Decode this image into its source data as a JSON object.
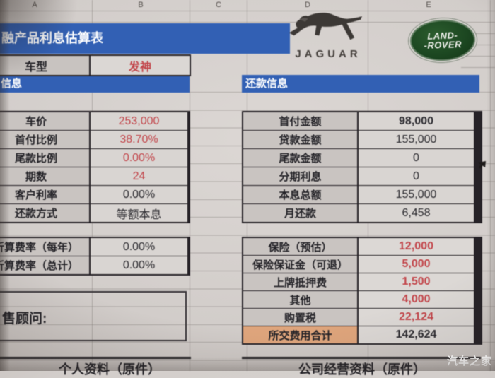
{
  "sheet": {
    "column_headers": [
      "A",
      "B",
      "C",
      "D",
      "E"
    ],
    "title_banner": "融产品利息估算表",
    "model_row": {
      "label": "车型",
      "value": "发神"
    },
    "left_section_header": "信息",
    "right_section_header": "还款信息",
    "vehicle_table": {
      "rows": [
        {
          "label": "车价",
          "value": "253,000",
          "red": true
        },
        {
          "label": "首付比例",
          "value": "38.70%",
          "red": true
        },
        {
          "label": "尾款比例",
          "value": "0.00%",
          "red": true
        },
        {
          "label": "期数",
          "value": "24",
          "red": true
        },
        {
          "label": "客户利率",
          "value": "0.00%",
          "red": false
        },
        {
          "label": "还款方式",
          "value": "等额本息",
          "red": false
        }
      ]
    },
    "rate_table": {
      "rows": [
        {
          "label": "折算费率（每年）",
          "value": "0.00%",
          "red": false
        },
        {
          "label": "折算费率（总计）",
          "value": "0.00%",
          "red": false
        }
      ]
    },
    "consultant_label": "售顾问:",
    "repayment_table": {
      "rows": [
        {
          "label": "首付金额",
          "value": "98,000",
          "bold": true
        },
        {
          "label": "贷款金额",
          "value": "155,000"
        },
        {
          "label": "尾款金额",
          "value": "0"
        },
        {
          "label": "分期利息",
          "value": "0"
        },
        {
          "label": "本息总额",
          "value": "155,000"
        },
        {
          "label": "月还款",
          "value": "6,458"
        }
      ]
    },
    "fees_table": {
      "rows": [
        {
          "label": "保险（预估）",
          "value": "12,000",
          "red": true
        },
        {
          "label": "保险保证金（可退）",
          "value": "5,000",
          "red": true
        },
        {
          "label": "上牌抵押费",
          "value": "1,500",
          "red": true
        },
        {
          "label": "其他",
          "value": "4,000",
          "red": true
        },
        {
          "label": "购置税",
          "value": "22,124",
          "red": true
        },
        {
          "label": "所交费用合计",
          "value": "142,624",
          "total": true
        }
      ]
    },
    "bottom_left_header": "个人资料（原件）",
    "bottom_right_header": "公司经营资料（原件）"
  },
  "logos": {
    "jaguar_text": "JAGUAR",
    "landrover_line1": "LAND-",
    "landrover_line2": "-ROVER"
  },
  "watermark": "汽车之家",
  "colors": {
    "banner_blue": "#3260b4",
    "value_red": "#c2454a",
    "total_orange": "#dfa57c",
    "landrover_green": "#1c4721"
  }
}
